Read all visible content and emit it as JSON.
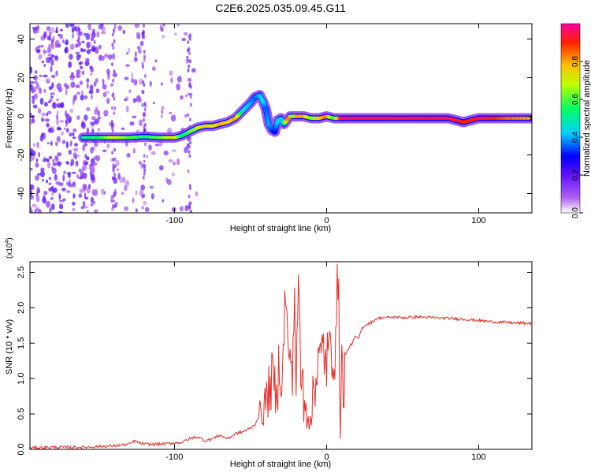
{
  "figure_title": "C2E6.2025.035.09.45.G11",
  "chart_data": [
    {
      "type": "heatmap",
      "title": "C2E6.2025.035.09.45.G11",
      "xlabel": "Height of straight line (km)",
      "ylabel": "Frequency (Hz)",
      "xlim": [
        -195,
        135
      ],
      "ylim": [
        -50,
        48
      ],
      "x_ticks": [
        -100,
        0,
        100
      ],
      "y_ticks": [
        -40,
        -20,
        0,
        20,
        40
      ],
      "colorbar": {
        "label": "Normalized spectral amplitude",
        "range": [
          0,
          1
        ],
        "ticks": [
          0.0,
          0.2,
          0.4,
          0.6,
          0.8
        ],
        "colormap": [
          "#ffffff",
          "#a020f0",
          "#0000ff",
          "#00ffff",
          "#00ff00",
          "#ffff00",
          "#ff8000",
          "#ff0000",
          "#ff00a0"
        ]
      },
      "ridge": {
        "x": [
          -160,
          -150,
          -140,
          -130,
          -120,
          -110,
          -100,
          -95,
          -90,
          -85,
          -80,
          -75,
          -70,
          -65,
          -60,
          -55,
          -50,
          -47,
          -44,
          -42,
          -40,
          -38,
          -36,
          -34,
          -32,
          -30,
          -28,
          -26,
          -24,
          -22,
          -20,
          -15,
          -10,
          -5,
          0,
          5,
          10,
          20,
          30,
          40,
          50,
          60,
          70,
          80,
          90,
          95,
          100,
          110,
          120,
          135
        ],
        "frequency": [
          -11,
          -11,
          -11,
          -11,
          -10.5,
          -11,
          -11,
          -10,
          -8,
          -6,
          -5,
          -5,
          -4,
          -3,
          -1,
          3,
          7,
          10,
          11,
          8,
          4,
          -4,
          -7,
          -8,
          -2,
          -1,
          -4,
          -2,
          0,
          0,
          0,
          0,
          -1,
          -1,
          0,
          -1,
          -1,
          -1,
          -1,
          -1,
          -1,
          -1,
          -1,
          -1,
          -3,
          -2,
          -1,
          -1,
          -1,
          -1
        ],
        "amplitude": [
          0.5,
          0.55,
          0.7,
          0.6,
          0.55,
          0.6,
          0.75,
          0.5,
          0.6,
          0.65,
          0.75,
          0.7,
          0.8,
          0.75,
          0.8,
          0.45,
          0.4,
          0.35,
          0.4,
          0.45,
          0.35,
          0.4,
          0.35,
          0.3,
          0.45,
          0.4,
          0.45,
          0.8,
          0.85,
          0.55,
          0.8,
          0.8,
          0.6,
          0.75,
          0.85,
          0.55,
          0.95,
          0.95,
          0.95,
          0.95,
          0.95,
          0.95,
          0.95,
          0.95,
          0.9,
          0.9,
          0.95,
          0.9,
          0.85,
          0.8
        ]
      },
      "background_noise_region_km": [
        -195,
        -85
      ]
    },
    {
      "type": "line",
      "xlabel": "Height of straight line (km)",
      "ylabel": "SNR (10 * v/v)",
      "y_multiplier": "(x10^4)",
      "y_multiplier_base": "(x10",
      "y_multiplier_exp": "4",
      "y_multiplier_close": ")",
      "xlim": [
        -195,
        135
      ],
      "ylim": [
        0,
        2.65
      ],
      "x_ticks": [
        -100,
        0,
        100
      ],
      "y_ticks": [
        0.0,
        0.5,
        1.0,
        1.5,
        2.0,
        2.5
      ],
      "line_color": "#e8302a",
      "series": [
        {
          "x": [
            -195,
            -180,
            -160,
            -140,
            -130,
            -126,
            -122,
            -115,
            -105,
            -95,
            -90,
            -85,
            -80,
            -75,
            -70,
            -65,
            -60,
            -55,
            -50,
            -47,
            -45,
            -43,
            -41,
            -39,
            -37,
            -35,
            -33,
            -31,
            -29,
            -27,
            -25,
            -24,
            -23,
            -22,
            -21,
            -20,
            -19,
            -18,
            -17,
            -16,
            -15,
            -14,
            -13,
            -12,
            -11,
            -10,
            -9,
            -8,
            -7,
            -6,
            -5,
            -4,
            -3,
            -2,
            -1,
            0,
            1,
            2,
            3,
            4,
            5,
            6,
            7,
            8,
            9,
            10,
            11,
            12,
            13,
            14,
            15,
            17,
            19,
            21,
            23,
            25,
            27,
            30,
            33,
            36,
            40,
            45,
            50,
            60,
            70,
            80,
            90,
            95,
            100,
            110,
            120,
            130,
            135
          ],
          "y": [
            0.02,
            0.03,
            0.03,
            0.05,
            0.07,
            0.12,
            0.08,
            0.07,
            0.08,
            0.1,
            0.15,
            0.18,
            0.12,
            0.15,
            0.2,
            0.15,
            0.22,
            0.25,
            0.3,
            0.35,
            0.45,
            0.5,
            0.6,
            0.75,
            0.9,
            1.0,
            0.7,
            1.3,
            0.9,
            2.35,
            1.1,
            1.6,
            0.9,
            1.5,
            2.2,
            0.9,
            1.8,
            2.35,
            0.8,
            1.2,
            0.6,
            0.9,
            0.4,
            0.6,
            0.35,
            0.3,
            0.9,
            1.05,
            1.0,
            1.1,
            1.3,
            1.2,
            1.35,
            1.45,
            1.3,
            1.2,
            1.4,
            1.3,
            1.5,
            1.35,
            1.45,
            1.3,
            2.2,
            2.65,
            0.15,
            1.25,
            0.7,
            1.35,
            1.35,
            1.4,
            1.45,
            1.5,
            1.6,
            1.55,
            1.7,
            1.75,
            1.77,
            1.8,
            1.85,
            1.86,
            1.86,
            1.87,
            1.86,
            1.87,
            1.86,
            1.85,
            1.84,
            1.83,
            1.82,
            1.8,
            1.79,
            1.78,
            1.78
          ]
        }
      ]
    }
  ]
}
